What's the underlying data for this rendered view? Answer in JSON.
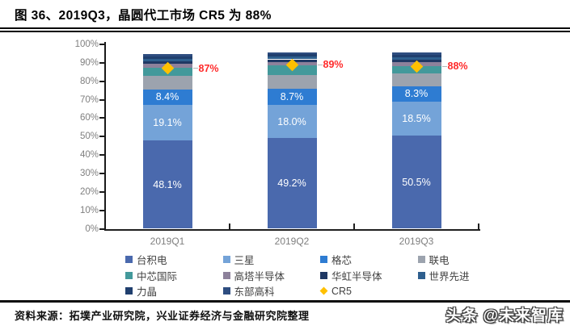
{
  "page": {
    "title": "图 36、2019Q3，晶圆代工市场 CR5 为 88%",
    "source_label": "资料来源：拓墣产业研究院，兴业证券经济与金融研究院整理",
    "watermark": "头条 @未来智库"
  },
  "chart_data": {
    "type": "bar",
    "stacked": true,
    "title": "2019Q3，晶圆代工市场 CR5 为 88%",
    "categories": [
      "2019Q1",
      "2019Q2",
      "2019Q3"
    ],
    "ylim": [
      0,
      100
    ],
    "yticks": [
      "0%",
      "10%",
      "20%",
      "30%",
      "40%",
      "50%",
      "60%",
      "70%",
      "80%",
      "90%",
      "100%"
    ],
    "grid": false,
    "legend_position": "bottom",
    "series": [
      {
        "name": "台积电",
        "color": "#4A69AD",
        "values": [
          48.1,
          49.2,
          50.5
        ],
        "data_labels": [
          "48.1%",
          "49.2%",
          "50.5%"
        ]
      },
      {
        "name": "三星",
        "color": "#74A3D8",
        "values": [
          19.1,
          18.0,
          18.5
        ],
        "data_labels": [
          "19.1%",
          "18.0%",
          "18.5%"
        ]
      },
      {
        "name": "格芯",
        "color": "#2E7CD2",
        "values": [
          8.4,
          8.7,
          8.3
        ],
        "data_labels": [
          "8.4%",
          "8.7%",
          "8.3%"
        ]
      },
      {
        "name": "联电",
        "color": "#9CA3AE",
        "values": [
          7.2,
          7.6,
          6.8
        ],
        "estimated": true
      },
      {
        "name": "中芯国际",
        "color": "#43999B",
        "values": [
          4.5,
          5.0,
          4.3
        ],
        "estimated": true
      },
      {
        "name": "高塔半导体",
        "color": "#8D819B",
        "values": [
          2.0,
          1.9,
          1.8
        ],
        "estimated": true
      },
      {
        "name": "华虹半导体",
        "color": "#1F3864",
        "values": [
          1.5,
          1.5,
          1.6
        ],
        "estimated": true
      },
      {
        "name": "世界先进",
        "color": "#2E5F8E",
        "values": [
          1.4,
          1.4,
          1.4
        ],
        "estimated": true
      },
      {
        "name": "力晶",
        "color": "#203F6E",
        "values": [
          1.4,
          1.4,
          1.3
        ],
        "estimated": true
      },
      {
        "name": "东部高科",
        "color": "#2E4D80",
        "values": [
          1.0,
          1.0,
          1.0
        ],
        "estimated": true
      }
    ],
    "overlay_series": {
      "name": "CR5",
      "marker": "diamond",
      "marker_color": "#FFC000",
      "values": [
        87,
        89,
        88
      ],
      "labels": [
        "87%",
        "89%",
        "88%"
      ],
      "label_color": "#FF2A2A"
    }
  }
}
